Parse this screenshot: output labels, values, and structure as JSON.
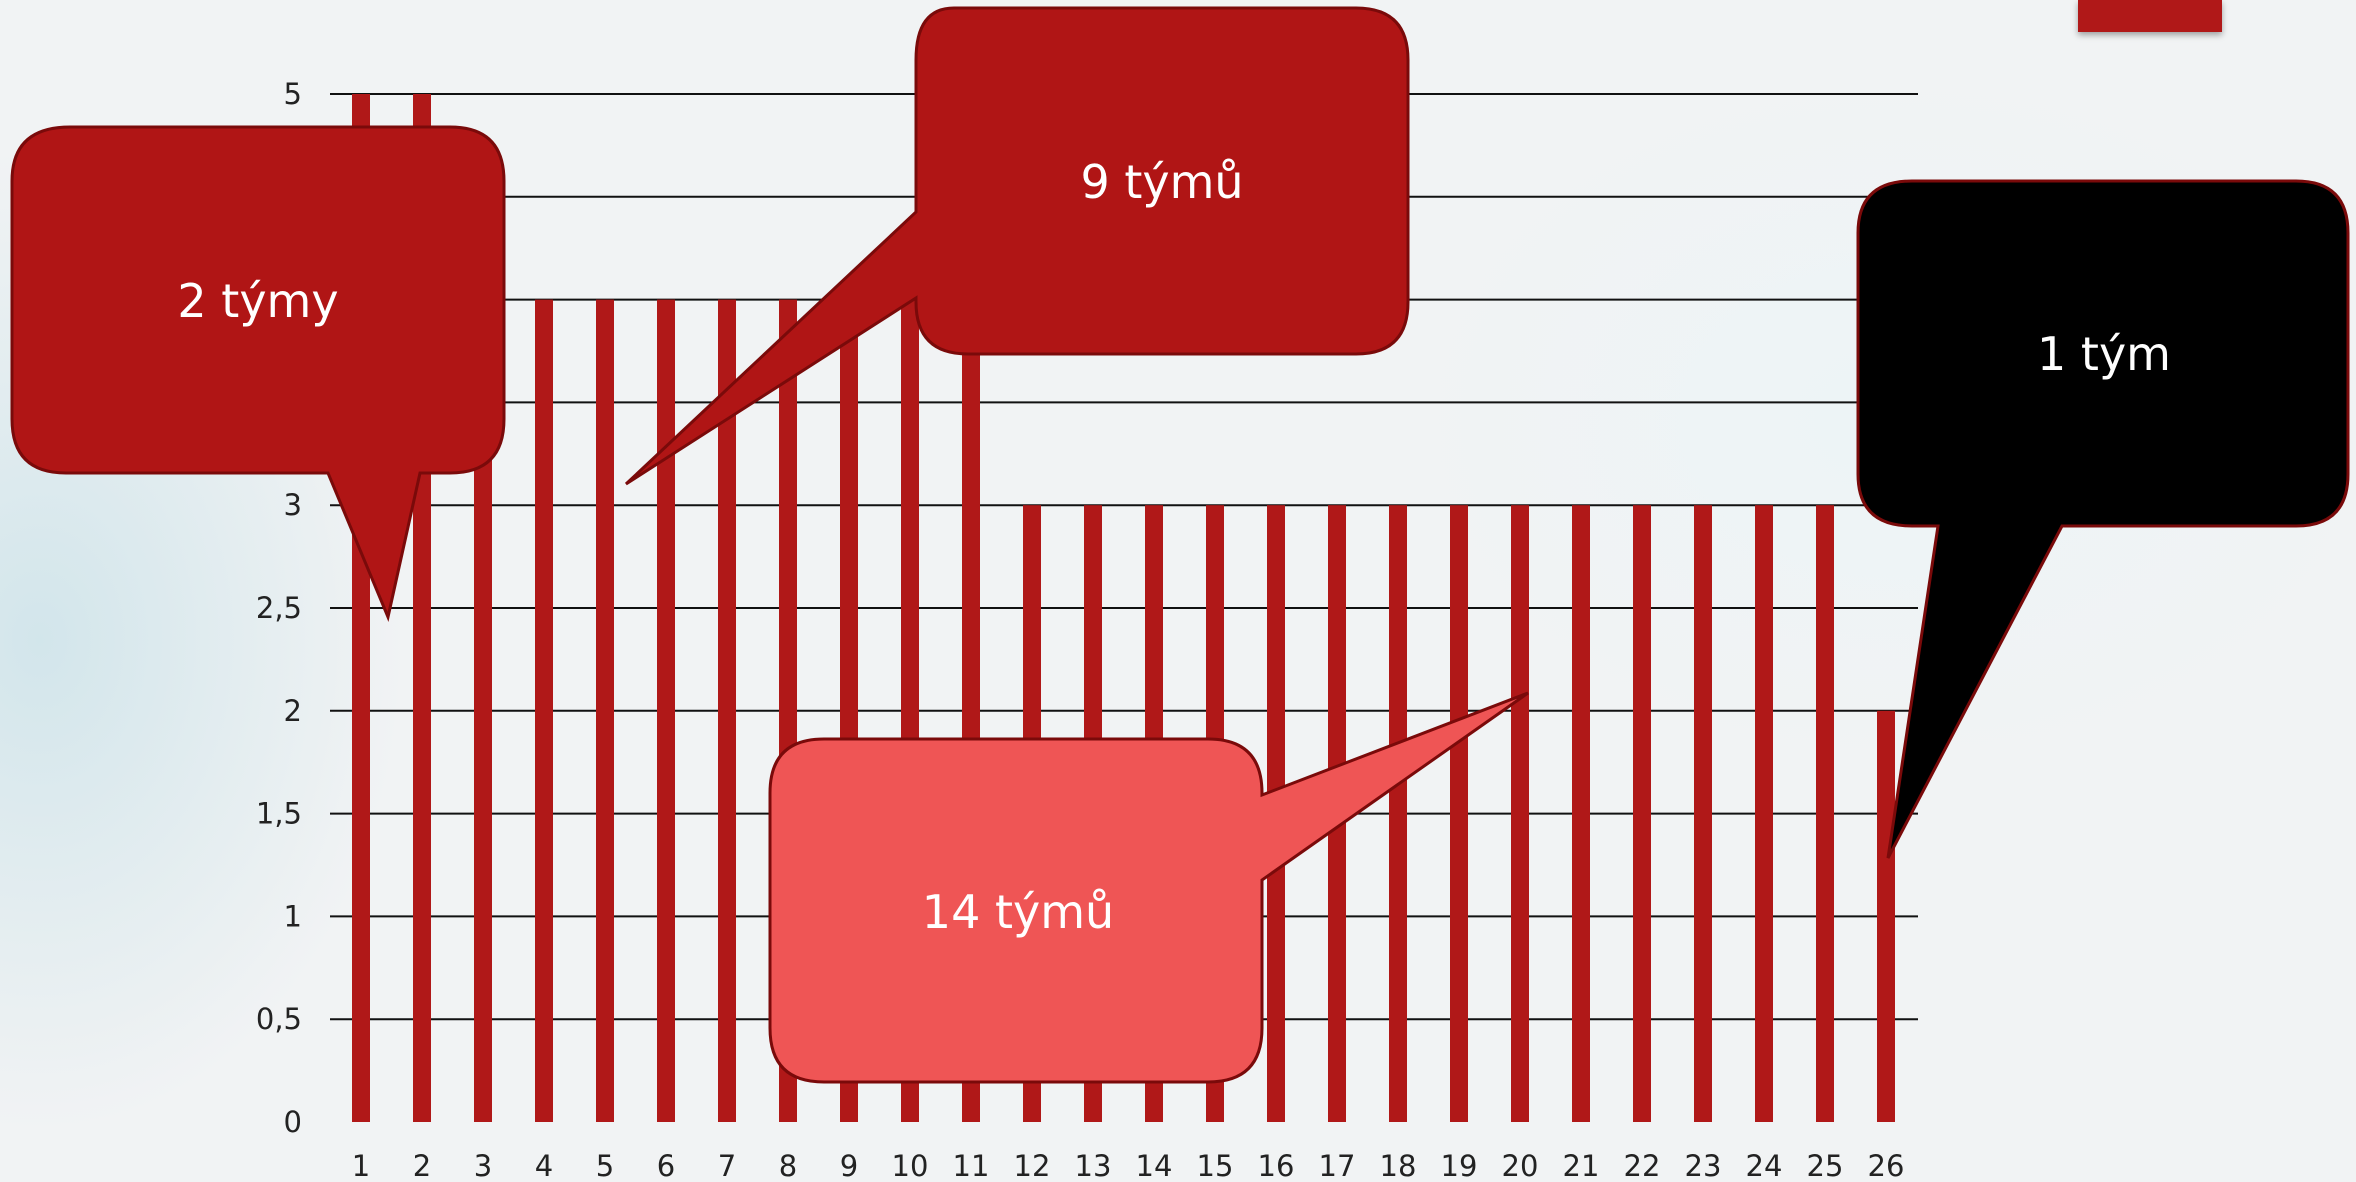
{
  "colors": {
    "bar": "#b01818",
    "gridline": "#111111",
    "callout_red": "#b01515",
    "callout_light_red": "#ef5555",
    "callout_black": "#000000",
    "callout_stroke": "#7a0a0a"
  },
  "chart_data": {
    "type": "bar",
    "categories": [
      "1",
      "2",
      "3",
      "4",
      "5",
      "6",
      "7",
      "8",
      "9",
      "10",
      "11",
      "12",
      "13",
      "14",
      "15",
      "16",
      "17",
      "18",
      "19",
      "20",
      "21",
      "22",
      "23",
      "24",
      "25",
      "26"
    ],
    "values": [
      5,
      5,
      4,
      4,
      4,
      4,
      4,
      4,
      4,
      4,
      4,
      3,
      3,
      3,
      3,
      3,
      3,
      3,
      3,
      3,
      3,
      3,
      3,
      3,
      3,
      2
    ],
    "ylim": [
      0,
      5
    ],
    "y_ticks": [
      "0",
      "0,5",
      "1",
      "1,5",
      "2",
      "2,5",
      "3",
      "3,5",
      "4",
      "4,5",
      "5"
    ],
    "y_tick_values": [
      0,
      0.5,
      1,
      1.5,
      2,
      2.5,
      3,
      3.5,
      4,
      4.5,
      5
    ],
    "y_tick_labels_shown": [
      "0",
      "0,5",
      "1",
      "1,5",
      "2",
      "2,5",
      "3",
      "",
      "",
      "",
      "5"
    ],
    "grid": true,
    "annotations": [
      {
        "text": "2 týmy",
        "style": "red",
        "points_to_category": "1"
      },
      {
        "text": "9 týmů",
        "style": "red",
        "points_to_category": "5"
      },
      {
        "text": "14 týmů",
        "style": "light-red",
        "points_to_category": "20"
      },
      {
        "text": "1 tým",
        "style": "black",
        "points_to_category": "26"
      }
    ]
  }
}
